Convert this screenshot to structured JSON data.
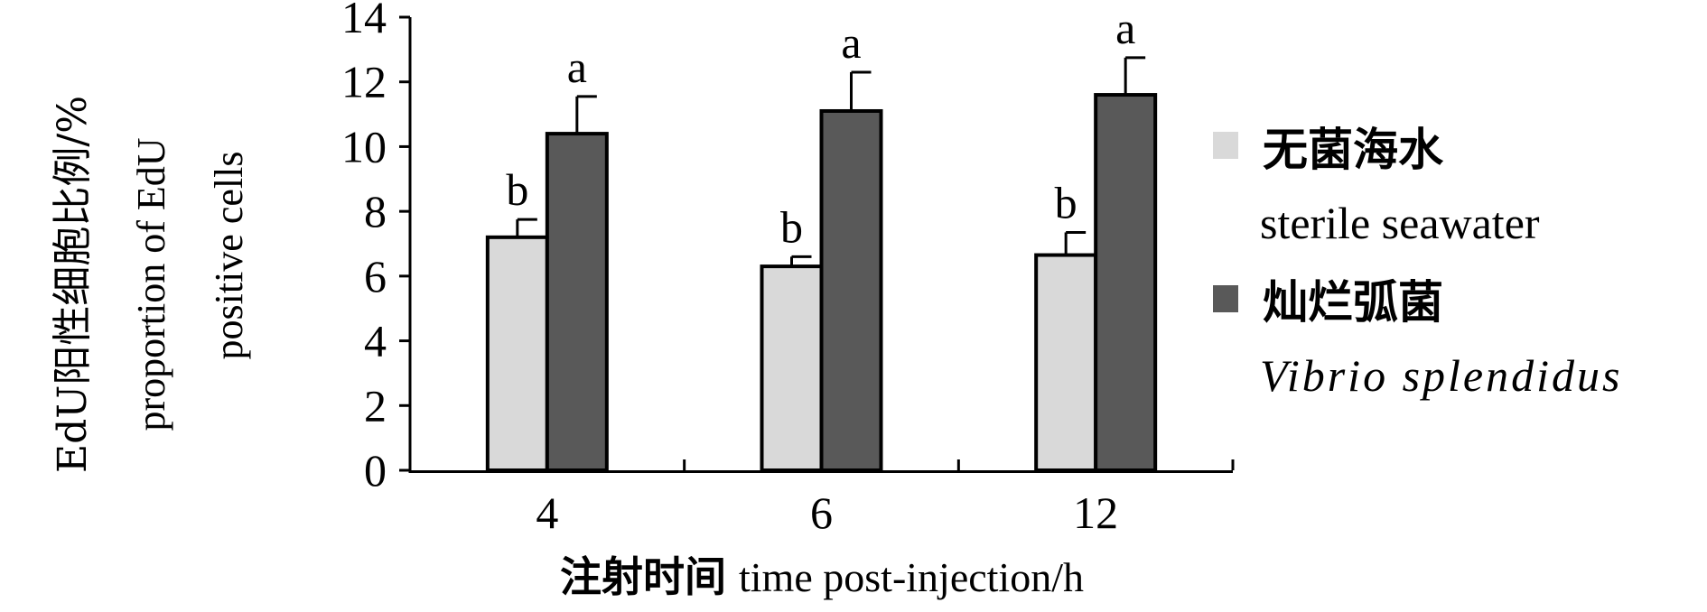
{
  "chart_data": {
    "type": "bar",
    "categories": [
      "4",
      "6",
      "12"
    ],
    "series": [
      {
        "name_cn": "无菌海水",
        "name": "sterile seawater",
        "color": "#d9d9d9",
        "values": [
          7.2,
          6.3,
          6.65
        ],
        "errors": [
          0.55,
          0.3,
          0.7
        ],
        "letters": [
          "b",
          "b",
          "b"
        ]
      },
      {
        "name_cn": "灿烂弧菌",
        "name": "Vibrio splendidus",
        "color": "#595959",
        "values": [
          10.4,
          11.1,
          11.6
        ],
        "errors": [
          1.15,
          1.2,
          1.15
        ],
        "letters": [
          "a",
          "a",
          "a"
        ]
      }
    ],
    "ylim": [
      0,
      14
    ],
    "yticks": [
      "0",
      "2",
      "4",
      "6",
      "8",
      "10",
      "12",
      "14"
    ],
    "ylabel_cn": "EdU阳性细胞比例/%",
    "ylabel_en_line1": "proportion of EdU",
    "ylabel_en_line2": "positive cells",
    "xlabel_cn": "注射时间",
    "xlabel_en": "time post-injection/h",
    "legend_position": "right",
    "grid": false
  }
}
